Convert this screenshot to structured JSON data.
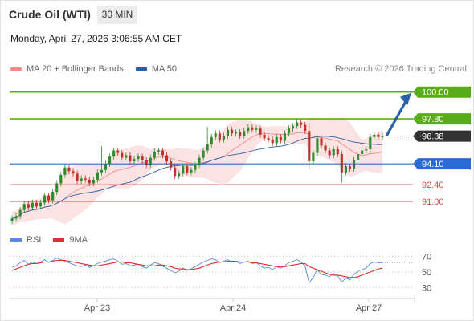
{
  "header": {
    "title": "Crude Oil (WTI)",
    "timeframe": "30 MIN",
    "datetime": "Monday, April 27, 2026 3:06:55 AM CET",
    "credit": "Research © 2026 Trading Central"
  },
  "legend": {
    "bollinger": "MA 20 + Bollinger Bands",
    "ma50": "MA 50",
    "rsi": "RSI",
    "rsi_ma": "9MA"
  },
  "colors": {
    "resistance": "#5aab19",
    "support": "#2b6bd6",
    "target": "#2a62a8",
    "minor_support": "#d94a4a",
    "bollinger": "#f08a8a",
    "bollinger_fill": "#fbdede",
    "ma50": "#2e5ea8",
    "candle_up": "#2e8b2e",
    "candle_down": "#c0302a",
    "rsi": "#5b8ad6",
    "rsi_ma": "#d93030",
    "current_price": "#333333"
  },
  "chart_data": [
    {
      "type": "candlestick",
      "title": "",
      "ylim": [
        89.1,
        101.3
      ],
      "x_ticks": [
        "Apr 23",
        "Apr 24",
        "Apr 27"
      ],
      "levels": [
        {
          "value": 100.0,
          "label": "100.00",
          "kind": "resistance"
        },
        {
          "value": 97.8,
          "label": "97.80",
          "kind": "resistance"
        },
        {
          "value": 96.38,
          "label": "96.38",
          "kind": "current"
        },
        {
          "value": 94.1,
          "label": "94.10",
          "kind": "support"
        },
        {
          "value": 92.4,
          "label": "92.40",
          "kind": "minor_support"
        },
        {
          "value": 91.0,
          "label": "91.00",
          "kind": "minor_support"
        }
      ],
      "price_path": [
        89.6,
        89.8,
        90.3,
        90.8,
        90.5,
        90.9,
        90.6,
        90.9,
        91.5,
        91.1,
        91.8,
        92.5,
        93.2,
        93.8,
        93.5,
        93.3,
        92.7,
        92.9,
        92.8,
        92.5,
        92.8,
        93.4,
        93.6,
        94.1,
        94.7,
        95.2,
        95.0,
        94.6,
        94.8,
        94.3,
        94.5,
        94.7,
        94.4,
        94.0,
        94.6,
        95.1,
        95.2,
        94.8,
        94.3,
        93.8,
        93.1,
        93.3,
        93.9,
        93.4,
        93.6,
        94.0,
        94.6,
        95.2,
        95.7,
        96.3,
        96.6,
        96.1,
        96.4,
        96.9,
        96.6,
        96.7,
        96.4,
        96.8,
        97.1,
        96.9,
        97.0,
        96.5,
        96.2,
        96.1,
        95.8,
        96.3,
        96.0,
        96.6,
        97.0,
        97.2,
        97.5,
        97.3,
        96.8,
        94.3,
        95.0,
        96.2,
        95.6,
        95.2,
        94.8,
        95.3,
        94.9,
        93.4,
        93.9,
        93.7,
        94.4,
        94.9,
        95.2,
        95.3,
        96.3,
        96.5,
        96.3,
        96.4
      ],
      "target": {
        "from": 96.38,
        "to": 100.0
      }
    },
    {
      "type": "line",
      "title": "",
      "ylim": [
        22,
        78
      ],
      "y_ticks": [
        70,
        50,
        30
      ],
      "series_names": [
        "RSI",
        "9MA"
      ],
      "rsi_path": [
        56,
        58,
        62,
        65,
        60,
        63,
        61,
        63,
        66,
        62,
        65,
        68,
        66,
        64,
        62,
        60,
        58,
        57,
        59,
        56,
        58,
        61,
        63,
        64,
        66,
        67,
        64,
        60,
        61,
        58,
        59,
        60,
        57,
        55,
        59,
        62,
        61,
        58,
        55,
        52,
        49,
        51,
        55,
        52,
        54,
        57,
        60,
        63,
        65,
        67,
        66,
        62,
        64,
        66,
        63,
        64,
        61,
        63,
        64,
        61,
        62,
        58,
        55,
        56,
        53,
        57,
        55,
        58,
        62,
        64,
        66,
        63,
        58,
        36,
        43,
        53,
        47,
        46,
        44,
        48,
        45,
        37,
        42,
        40,
        47,
        51,
        53,
        55,
        61,
        63,
        62,
        62
      ],
      "ma_path": [
        52,
        54,
        56,
        58,
        60,
        61,
        61,
        62,
        63,
        63,
        64,
        65,
        65,
        65,
        64,
        63,
        62,
        61,
        60,
        59,
        58,
        58,
        59,
        60,
        61,
        62,
        63,
        63,
        62,
        62,
        61,
        60,
        59,
        58,
        58,
        58,
        59,
        59,
        58,
        57,
        55,
        54,
        54,
        53,
        53,
        54,
        55,
        57,
        59,
        61,
        62,
        63,
        63,
        64,
        64,
        64,
        63,
        63,
        63,
        62,
        62,
        61,
        60,
        59,
        58,
        57,
        57,
        57,
        58,
        59,
        60,
        61,
        61,
        57,
        55,
        53,
        51,
        49,
        47,
        46,
        46,
        45,
        44,
        43,
        43,
        44,
        46,
        48,
        50,
        52,
        54,
        55
      ]
    }
  ]
}
